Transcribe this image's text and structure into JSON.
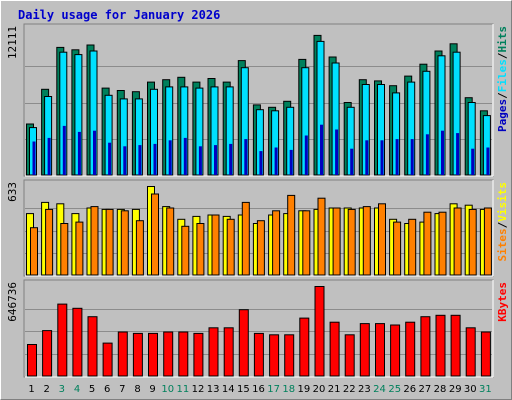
{
  "title": "Daily usage for January 2026",
  "colors": {
    "hits": "#00805c",
    "files": "#00e0ff",
    "pages": "#0000c0",
    "visits": "#ffff00",
    "sites": "#ff8000",
    "kbytes": "#ff0000",
    "weekend": "#00805c",
    "weekday": "#000000"
  },
  "chart_data": [
    {
      "type": "bar",
      "panel": "top",
      "y_max_label": "12111",
      "ylim": [
        0,
        12111
      ],
      "x": [
        "1",
        "2",
        "3",
        "4",
        "5",
        "6",
        "7",
        "8",
        "9",
        "10",
        "11",
        "12",
        "13",
        "14",
        "15",
        "16",
        "17",
        "18",
        "19",
        "20",
        "21",
        "22",
        "23",
        "24",
        "25",
        "26",
        "27",
        "28",
        "29",
        "30",
        "31"
      ],
      "weekend_days": [
        "3",
        "4",
        "10",
        "11",
        "17",
        "18",
        "24",
        "25",
        "31"
      ],
      "legend": [
        "Pages",
        "Files",
        "Hits"
      ],
      "legend_separator": "/",
      "series": [
        {
          "name": "Hits",
          "color": "#00805c",
          "values": [
            4300,
            7200,
            10700,
            10500,
            10900,
            7300,
            7100,
            7000,
            7800,
            8000,
            8200,
            7800,
            8100,
            7800,
            9600,
            5900,
            5700,
            6200,
            9700,
            11700,
            9900,
            6100,
            8000,
            7900,
            7500,
            8300,
            9300,
            10400,
            11000,
            6500,
            5400
          ]
        },
        {
          "name": "Files",
          "color": "#00e0ff",
          "values": [
            4000,
            6600,
            10300,
            10100,
            10400,
            6700,
            6400,
            6400,
            7200,
            7400,
            7400,
            7300,
            7400,
            7400,
            9000,
            5500,
            5400,
            5700,
            9000,
            11200,
            9400,
            5700,
            7600,
            7600,
            6900,
            7800,
            8700,
            10000,
            10300,
            6100,
            5000
          ]
        },
        {
          "name": "Pages",
          "color": "#0000c0",
          "values": [
            2800,
            3100,
            4100,
            3600,
            3700,
            2700,
            2400,
            2500,
            2600,
            2900,
            3100,
            2400,
            2500,
            2600,
            3000,
            2000,
            2300,
            2100,
            3300,
            4200,
            3800,
            2200,
            2900,
            2900,
            3000,
            3000,
            3400,
            3700,
            3500,
            2200,
            2300
          ]
        }
      ]
    },
    {
      "type": "bar",
      "panel": "middle",
      "y_max_label": "633",
      "ylim": [
        0,
        633
      ],
      "x": [
        "1",
        "2",
        "3",
        "4",
        "5",
        "6",
        "7",
        "8",
        "9",
        "10",
        "11",
        "12",
        "13",
        "14",
        "15",
        "16",
        "17",
        "18",
        "19",
        "20",
        "21",
        "22",
        "23",
        "24",
        "25",
        "26",
        "27",
        "28",
        "29",
        "30",
        "31"
      ],
      "legend": [
        "Sites",
        "Visits"
      ],
      "legend_separator": "/",
      "series": [
        {
          "name": "Visits",
          "color": "#ffff00",
          "values": [
            440,
            520,
            510,
            440,
            480,
            470,
            470,
            470,
            633,
            490,
            400,
            420,
            430,
            420,
            430,
            370,
            430,
            440,
            460,
            470,
            480,
            480,
            480,
            480,
            400,
            370,
            380,
            440,
            510,
            500,
            470
          ]
        },
        {
          "name": "Sites",
          "color": "#ff8000",
          "values": [
            340,
            470,
            370,
            380,
            490,
            470,
            460,
            390,
            580,
            480,
            350,
            370,
            430,
            400,
            520,
            390,
            460,
            570,
            460,
            550,
            480,
            470,
            490,
            510,
            380,
            400,
            450,
            450,
            480,
            470,
            480
          ]
        }
      ]
    },
    {
      "type": "bar",
      "panel": "bottom",
      "y_max_label": "646736",
      "ylim": [
        0,
        646736
      ],
      "x": [
        "1",
        "2",
        "3",
        "4",
        "5",
        "6",
        "7",
        "8",
        "9",
        "10",
        "11",
        "12",
        "13",
        "14",
        "15",
        "16",
        "17",
        "18",
        "19",
        "20",
        "21",
        "22",
        "23",
        "24",
        "25",
        "26",
        "27",
        "28",
        "29",
        "30",
        "31"
      ],
      "legend": [
        "KBytes"
      ],
      "series": [
        {
          "name": "KBytes",
          "color": "#ff0000",
          "values": [
            230000,
            330000,
            520000,
            490000,
            430000,
            240000,
            320000,
            310000,
            310000,
            320000,
            320000,
            310000,
            350000,
            350000,
            480000,
            310000,
            300000,
            300000,
            420000,
            646736,
            390000,
            300000,
            380000,
            380000,
            370000,
            390000,
            430000,
            440000,
            440000,
            350000,
            320000
          ]
        }
      ]
    }
  ]
}
